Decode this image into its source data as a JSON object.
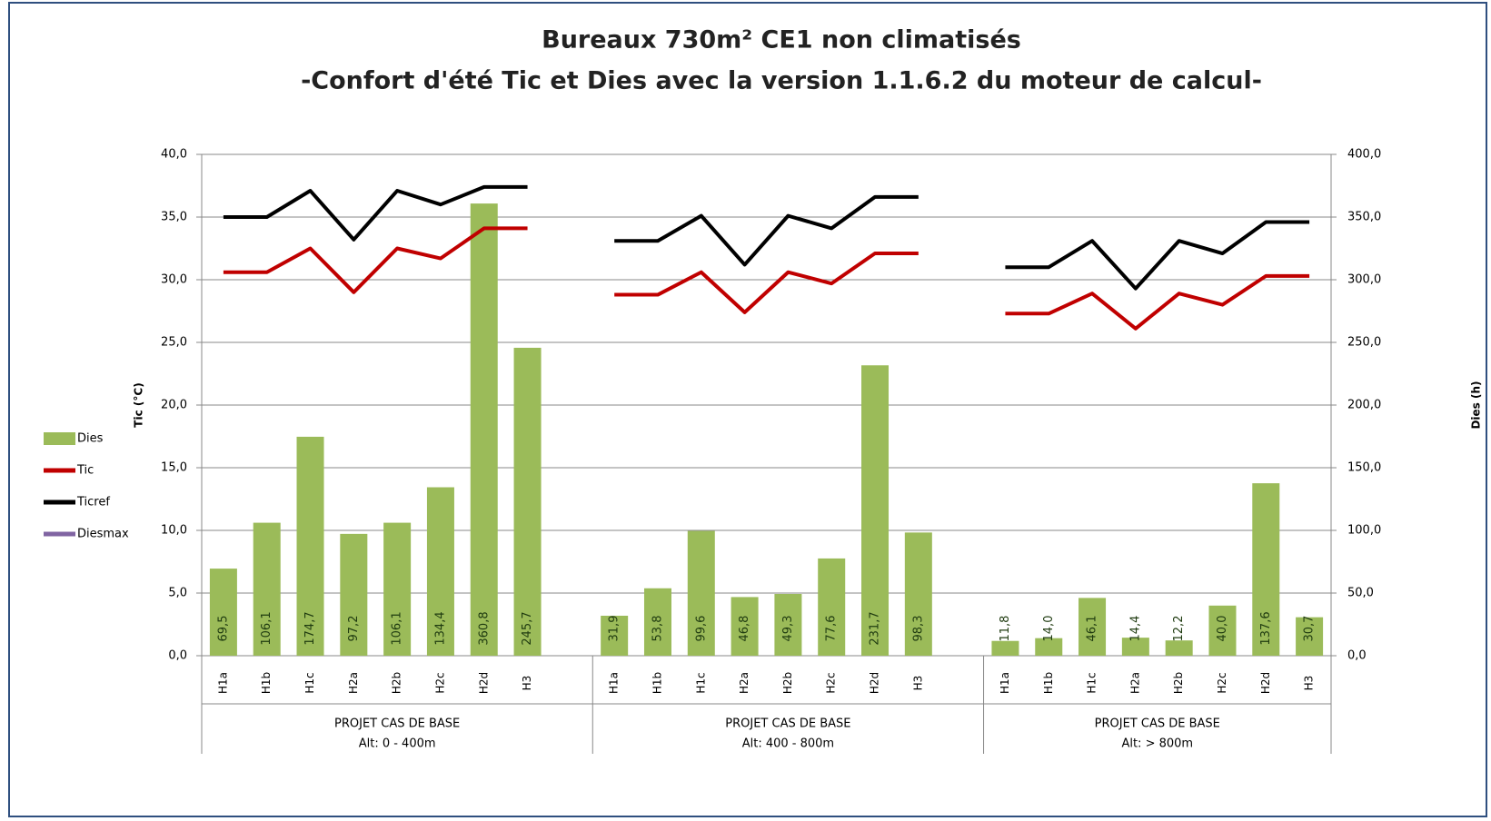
{
  "chart_data": {
    "type": "bar-line",
    "title": [
      "Bureaux 730m² CE1 non climatisés",
      "-Confort d'été Tic et Dies avec la version 1.1.6.2 du moteur de calcul-"
    ],
    "y_label": "Tic (°C)",
    "y2_label": "Dies (h)",
    "categories": [
      "H1a",
      "H1b",
      "H1c",
      "H2a",
      "H2b",
      "H2c",
      "H2d",
      "H3",
      null,
      "H1a",
      "H1b",
      "H1c",
      "H2a",
      "H2b",
      "H2c",
      "H2d",
      "H3",
      null,
      "H1a",
      "H1b",
      "H1c",
      "H2a",
      "H2b",
      "H2c",
      "H2d",
      "H3"
    ],
    "groups": [
      [
        "PROJET CAS DE BASE",
        "Alt: 0 - 400m"
      ],
      [
        "PROJET CAS DE BASE",
        "Alt: 400 - 800m"
      ],
      [
        "PROJET CAS DE BASE",
        "Alt: > 800m"
      ]
    ],
    "series": [
      {
        "name": "Dies",
        "color": "#9bbb59",
        "kind": "bar",
        "axis": "y2",
        "values": [
          69.5,
          106.1,
          174.7,
          97.2,
          106.1,
          134.4,
          360.8,
          245.7,
          null,
          31.9,
          53.8,
          99.6,
          46.8,
          49.3,
          77.6,
          231.7,
          98.3,
          null,
          11.8,
          14.0,
          46.1,
          14.4,
          12.2,
          40.0,
          137.6,
          30.7
        ],
        "value_labels": [
          "69,5",
          "106,1",
          "174,7",
          "97,2",
          "106,1",
          "134,4",
          "360,8",
          "245,7",
          null,
          "31,9",
          "53,8",
          "99,6",
          "46,8",
          "49,3",
          "77,6",
          "231,7",
          "98,3",
          null,
          "11,8",
          "14,0",
          "46,1",
          "14,4",
          "12,2",
          "40,0",
          "137,6",
          "30,7"
        ]
      },
      {
        "name": "Tic",
        "color": "#c00000",
        "kind": "line",
        "values": [
          30.6,
          30.6,
          32.5,
          29.0,
          32.5,
          31.7,
          34.1,
          34.1,
          null,
          28.8,
          28.8,
          30.6,
          27.4,
          30.6,
          29.7,
          32.1,
          32.1,
          null,
          27.3,
          27.3,
          28.9,
          26.1,
          28.9,
          28.0,
          30.3,
          30.3
        ]
      },
      {
        "name": "Ticref",
        "color": "#000000",
        "kind": "line",
        "values": [
          35.0,
          35.0,
          37.1,
          33.2,
          37.1,
          36.0,
          37.4,
          37.4,
          null,
          33.1,
          33.1,
          35.1,
          31.2,
          35.1,
          34.1,
          36.6,
          36.6,
          null,
          31.0,
          31.0,
          33.1,
          29.3,
          33.1,
          32.1,
          34.6,
          34.6
        ]
      },
      {
        "name": "Diesmax",
        "color": "#8064a2",
        "kind": "line",
        "axis": "y2",
        "values": [
          null,
          null,
          null,
          null,
          null,
          null,
          null,
          null,
          null,
          null,
          null,
          null,
          null,
          null,
          null,
          null,
          null,
          null,
          null,
          null,
          null,
          null,
          null,
          null,
          null,
          null
        ]
      }
    ],
    "ylim": [
      0,
      40
    ],
    "yticks": [
      {
        "value": 0,
        "label": "0,0"
      },
      {
        "value": 5,
        "label": "5,0"
      },
      {
        "value": 10,
        "label": "10,0"
      },
      {
        "value": 15,
        "label": "15,0"
      },
      {
        "value": 20,
        "label": "20,0"
      },
      {
        "value": 25,
        "label": "25,0"
      },
      {
        "value": 30,
        "label": "30,0"
      },
      {
        "value": 35,
        "label": "35,0"
      },
      {
        "value": 40,
        "label": "40,0"
      }
    ],
    "y2lim": [
      0,
      400
    ],
    "y2ticks": [
      {
        "value": 0,
        "label": "0,0"
      },
      {
        "value": 50,
        "label": "50,0"
      },
      {
        "value": 100,
        "label": "100,0"
      },
      {
        "value": 150,
        "label": "150,0"
      },
      {
        "value": 200,
        "label": "200,0"
      },
      {
        "value": 250,
        "label": "250,0"
      },
      {
        "value": 300,
        "label": "300,0"
      },
      {
        "value": 350,
        "label": "350,0"
      },
      {
        "value": 400,
        "label": "400,0"
      }
    ],
    "grid": true,
    "legend": "left"
  }
}
